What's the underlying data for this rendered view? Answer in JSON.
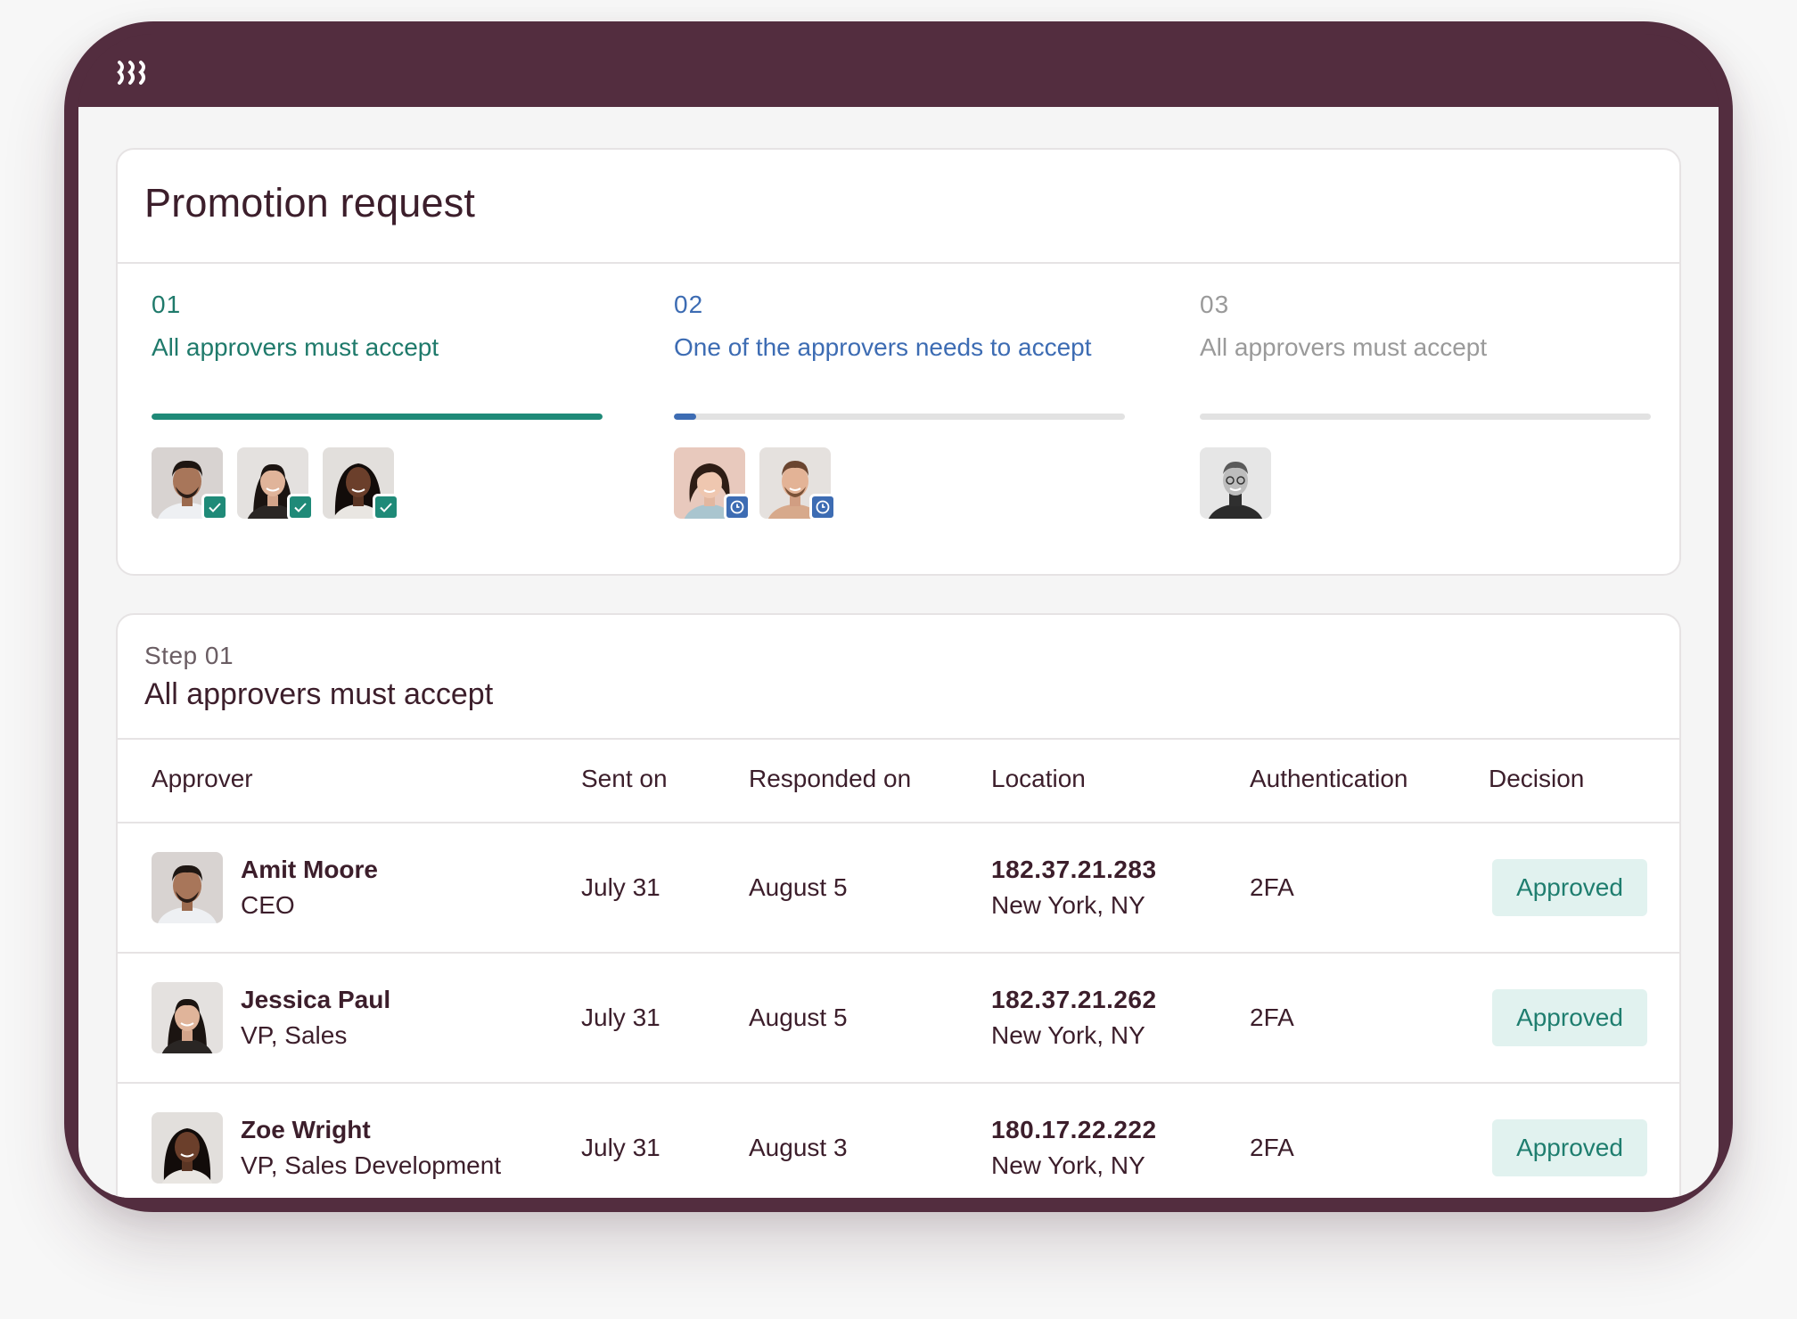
{
  "app": {
    "logo_icon": "brand-logo-icon"
  },
  "card": {
    "title": "Promotion request"
  },
  "steps": [
    {
      "number": "01",
      "label": "All approvers must accept",
      "progress": 1.0,
      "color": "#1f8a78",
      "approvers": [
        "Amit Moore",
        "Jessica Paul",
        "Zoe Wright"
      ],
      "status_icon": "check-icon"
    },
    {
      "number": "02",
      "label": "One of the approvers needs to accept",
      "progress": 0.05,
      "color": "#3d6cb3",
      "approvers": [
        "approver-4",
        "approver-5"
      ],
      "status_icon": "clock-icon"
    },
    {
      "number": "03",
      "label": "All approvers must accept",
      "progress": 0.0,
      "color": "#9a9a9a",
      "approvers": [
        "approver-6"
      ],
      "status_icon": ""
    }
  ],
  "detail": {
    "step_sub": "Step 01",
    "heading": "All approvers must accept",
    "columns": [
      "Approver",
      "Sent on",
      "Responded on",
      "Location",
      "Authentication",
      "Decision"
    ],
    "rows": [
      {
        "name": "Amit Moore",
        "role": "CEO",
        "sent": "July 31",
        "responded": "August 5",
        "ip": "182.37.21.283",
        "city": "New York, NY",
        "auth": "2FA",
        "decision": "Approved"
      },
      {
        "name": "Jessica Paul",
        "role": "VP, Sales",
        "sent": "July 31",
        "responded": "August 5",
        "ip": "182.37.21.262",
        "city": "New York, NY",
        "auth": "2FA",
        "decision": "Approved"
      },
      {
        "name": "Zoe Wright",
        "role": "VP, Sales Development",
        "sent": "July 31",
        "responded": "August 3",
        "ip": "180.17.22.222",
        "city": "New York, NY",
        "auth": "2FA",
        "decision": "Approved"
      }
    ]
  },
  "colors": {
    "frame": "#532d3f",
    "approved_bg": "#e1f2ef",
    "approved_text": "#1f7e6f",
    "text": "#3c1e2b"
  }
}
